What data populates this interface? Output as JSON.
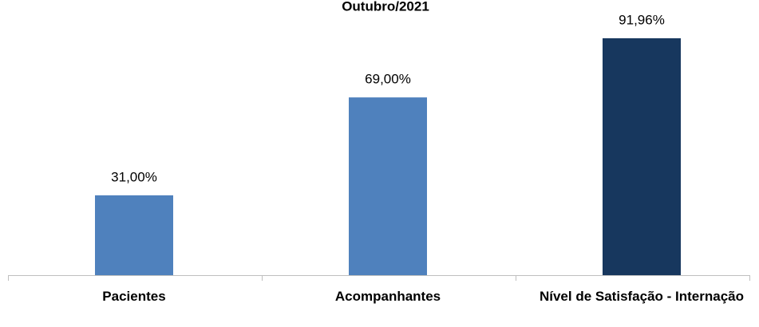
{
  "chart_data": {
    "type": "bar",
    "title": "Outubro/2021",
    "categories": [
      "Pacientes",
      "Acompanhantes",
      "Nível de Satisfação - Internação"
    ],
    "values": [
      31,
      69,
      91.96
    ],
    "value_labels": [
      "31,00%",
      "69,00%",
      "91,96%"
    ],
    "colors": [
      "#4f81bd",
      "#4f81bd",
      "#17375e"
    ],
    "ylim": [
      0,
      100
    ]
  }
}
